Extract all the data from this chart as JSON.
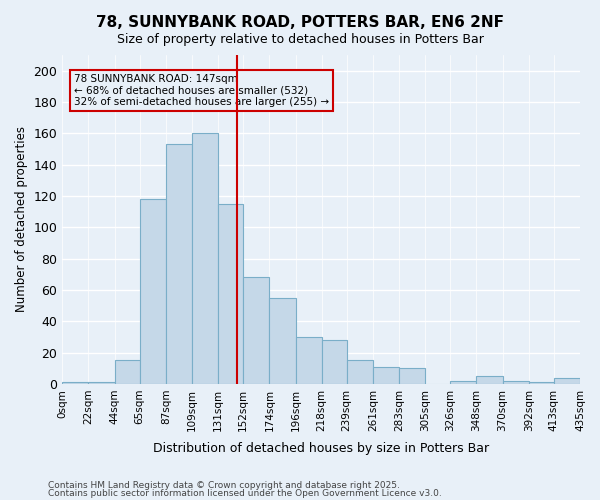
{
  "title": "78, SUNNYBANK ROAD, POTTERS BAR, EN6 2NF",
  "subtitle": "Size of property relative to detached houses in Potters Bar",
  "xlabel": "Distribution of detached houses by size in Potters Bar",
  "ylabel": "Number of detached properties",
  "footnote1": "Contains HM Land Registry data © Crown copyright and database right 2025.",
  "footnote2": "Contains public sector information licensed under the Open Government Licence v3.0.",
  "annotation_line1": "78 SUNNYBANK ROAD: 147sqm",
  "annotation_line2": "← 68% of detached houses are smaller (532)",
  "annotation_line3": "32% of semi-detached houses are larger (255) →",
  "property_size": 147,
  "bin_edges": [
    0,
    22,
    44,
    65,
    87,
    109,
    131,
    152,
    174,
    196,
    218,
    239,
    261,
    283,
    305,
    326,
    348,
    370,
    392,
    413,
    435
  ],
  "bin_labels": [
    "0sqm",
    "22sqm",
    "44sqm",
    "65sqm",
    "87sqm",
    "109sqm",
    "131sqm",
    "152sqm",
    "174sqm",
    "196sqm",
    "218sqm",
    "239sqm",
    "261sqm",
    "283sqm",
    "305sqm",
    "326sqm",
    "348sqm",
    "370sqm",
    "392sqm",
    "413sqm",
    "435sqm"
  ],
  "bar_heights": [
    1,
    1,
    15,
    118,
    153,
    160,
    115,
    68,
    55,
    30,
    28,
    15,
    11,
    10,
    0,
    2,
    5,
    2,
    1,
    4
  ],
  "bar_color": "#c5d8e8",
  "bar_edge_color": "#7aaec8",
  "vline_color": "#cc0000",
  "annotation_box_color": "#cc0000",
  "bg_color": "#e8f0f8",
  "grid_color": "#ffffff",
  "ylim": [
    0,
    210
  ],
  "yticks": [
    0,
    20,
    40,
    60,
    80,
    100,
    120,
    140,
    160,
    180,
    200
  ]
}
